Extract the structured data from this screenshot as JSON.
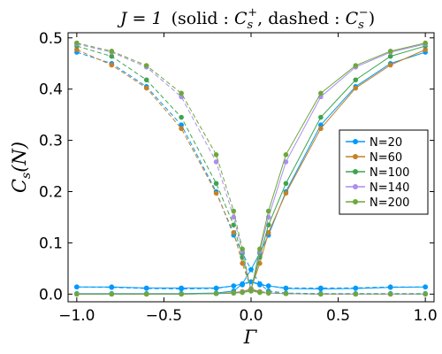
{
  "chart_data": {
    "type": "line",
    "title": "J = 1   (solid : C_s^+, dashed : C_s^−)",
    "title_parts": {
      "prefix": "J = 1",
      "open": "(solid : ",
      "plus_sym": "C",
      "plus_sub": "s",
      "plus_sup": "+",
      "mid": ", dashed : ",
      "minus_sym": "C",
      "minus_sub": "s",
      "minus_sup": "−",
      "close": ")"
    },
    "xlabel": "Γ",
    "ylabel": "C_s(N)",
    "ylabel_parts": {
      "sym": "C",
      "sub": "s",
      "rest": "(N)"
    },
    "xlim": [
      -1.05,
      1.05
    ],
    "ylim": [
      -0.015,
      0.51
    ],
    "xticks": [
      -1.0,
      -0.5,
      0.0,
      0.5,
      1.0
    ],
    "xtick_labels": [
      "−1.0",
      "−0.5",
      "0.0",
      "0.5",
      "1.0"
    ],
    "yticks": [
      0.0,
      0.1,
      0.2,
      0.3,
      0.4,
      0.5
    ],
    "ytick_labels": [
      "0.0",
      "0.1",
      "0.2",
      "0.3",
      "0.4",
      "0.5"
    ],
    "grid": false,
    "legend_position": "center-right",
    "x": [
      -1.0,
      -0.8,
      -0.6,
      -0.4,
      -0.2,
      -0.1,
      -0.05,
      0.0,
      0.05,
      0.1,
      0.2,
      0.4,
      0.6,
      0.8,
      1.0
    ],
    "series": [
      {
        "name": "N=20",
        "color": "#009AFA",
        "solid": [
          0.001,
          0.001,
          0.001,
          0.001,
          0.002,
          0.006,
          0.02,
          0.048,
          0.08,
          0.115,
          0.2,
          0.33,
          0.405,
          0.45,
          0.472
        ],
        "dashed": [
          0.472,
          0.45,
          0.405,
          0.33,
          0.2,
          0.115,
          0.08,
          0.048,
          0.02,
          0.006,
          0.002,
          0.001,
          0.001,
          0.001,
          0.001
        ],
        "solid_low": [
          0.014,
          0.014,
          0.012,
          0.012,
          0.012,
          0.016,
          0.02,
          0.024,
          0.018,
          0.016,
          0.011,
          0.01,
          0.011,
          0.013,
          0.014
        ],
        "dashed_low": [
          0.014,
          0.013,
          0.011,
          0.01,
          0.011,
          0.016,
          0.018,
          0.024,
          0.02,
          0.016,
          0.012,
          0.012,
          0.012,
          0.014,
          0.014
        ]
      },
      {
        "name": "N=60",
        "color": "#C68125",
        "solid": [
          0.0,
          0.0,
          0.0,
          0.0,
          0.001,
          0.003,
          0.005,
          0.01,
          0.06,
          0.12,
          0.197,
          0.323,
          0.402,
          0.447,
          0.477
        ],
        "dashed": [
          0.477,
          0.447,
          0.402,
          0.323,
          0.197,
          0.12,
          0.06,
          0.01,
          0.005,
          0.003,
          0.001,
          0.0,
          0.0,
          0.0,
          0.0
        ]
      },
      {
        "name": "N=100",
        "color": "#3EA44E",
        "solid": [
          0.0,
          0.0,
          0.0,
          0.0,
          0.001,
          0.002,
          0.004,
          0.008,
          0.072,
          0.135,
          0.216,
          0.345,
          0.418,
          0.464,
          0.484
        ],
        "dashed": [
          0.484,
          0.464,
          0.418,
          0.345,
          0.216,
          0.135,
          0.072,
          0.008,
          0.004,
          0.002,
          0.001,
          0.0,
          0.0,
          0.0,
          0.0
        ]
      },
      {
        "name": "N=140",
        "color": "#AC8EED",
        "solid": [
          0.0,
          0.0,
          0.0,
          0.0,
          0.001,
          0.002,
          0.004,
          0.007,
          0.083,
          0.15,
          0.258,
          0.385,
          0.443,
          0.472,
          0.488
        ],
        "dashed": [
          0.488,
          0.472,
          0.443,
          0.385,
          0.258,
          0.15,
          0.083,
          0.007,
          0.004,
          0.002,
          0.001,
          0.0,
          0.0,
          0.0,
          0.0
        ]
      },
      {
        "name": "N=200",
        "color": "#6DA83B",
        "solid": [
          0.0,
          0.0,
          0.0,
          0.0,
          0.001,
          0.002,
          0.003,
          0.006,
          0.088,
          0.162,
          0.272,
          0.392,
          0.446,
          0.474,
          0.49
        ],
        "dashed": [
          0.49,
          0.474,
          0.446,
          0.392,
          0.272,
          0.162,
          0.088,
          0.006,
          0.003,
          0.002,
          0.001,
          0.0,
          0.0,
          0.0,
          0.0
        ]
      }
    ]
  }
}
